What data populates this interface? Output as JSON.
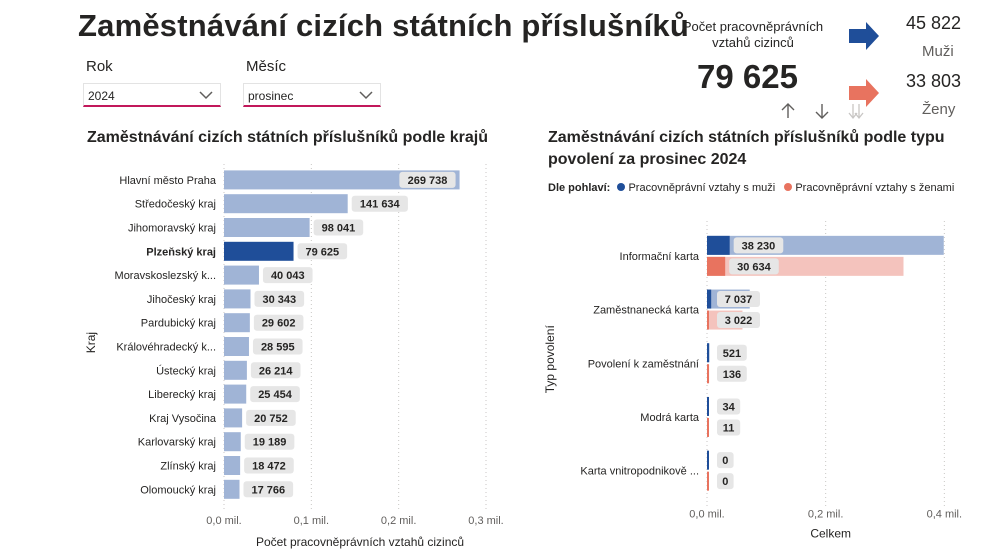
{
  "page": {
    "title": "Zaměstnávání cizích státních příslušníků"
  },
  "filters": {
    "year": {
      "label": "Rok",
      "value": "2024"
    },
    "month": {
      "label": "Měsíc",
      "value": "prosinec"
    }
  },
  "kpi": {
    "label": "Počet pracovněprávních vztahů cizinců",
    "value": "79 625",
    "men": {
      "value": "45 822",
      "label": "Muži"
    },
    "women": {
      "value": "33 803",
      "label": "Ženy"
    },
    "colors": {
      "men": "#1f4e99",
      "women": "#e8735f"
    }
  },
  "chart_data": [
    {
      "type": "bar",
      "orientation": "horizontal",
      "title": "Zaměstnávání cizích státních příslušníků podle krajů",
      "xlabel": "Počet pracovněprávních vztahů cizinců",
      "ylabel": "Kraj",
      "xlim": [
        0,
        300000
      ],
      "x_ticks": [
        "0,0 mil.",
        "0,1 mil.",
        "0,2 mil.",
        "0,3 mil."
      ],
      "x_tick_values": [
        0,
        100000,
        200000,
        300000
      ],
      "grid": true,
      "highlighted": "Plzeňský kraj",
      "colors": {
        "bar": "#a0b4d6",
        "highlight": "#1f4e99"
      },
      "categories": [
        "Hlavní město Praha",
        "Středočeský kraj",
        "Jihomoravský kraj",
        "Plzeňský kraj",
        "Moravskoslezský k...",
        "Jihočeský kraj",
        "Pardubický kraj",
        "Královéhradecký k...",
        "Ústecký kraj",
        "Liberecký kraj",
        "Kraj Vysočina",
        "Karlovarský kraj",
        "Zlínský kraj",
        "Olomoucký kraj"
      ],
      "values": [
        269738,
        141634,
        98041,
        79625,
        40043,
        30343,
        29602,
        28595,
        26214,
        25454,
        20752,
        19189,
        18472,
        17766
      ],
      "labels": [
        "269 738",
        "141 634",
        "98 041",
        "79 625",
        "40 043",
        "30 343",
        "29 602",
        "28 595",
        "26 214",
        "25 454",
        "20 752",
        "19 189",
        "18 472",
        "17 766"
      ]
    },
    {
      "type": "bar",
      "orientation": "horizontal",
      "title": "Zaměstnávání cizích státních příslušníků podle typu povolení za prosinec 2024",
      "legend_title": "Dle pohlaví:",
      "legend_position": "top-left",
      "xlabel": "Celkem",
      "ylabel": "Typ povolení",
      "xlim": [
        0,
        450000
      ],
      "x_ticks": [
        "0,0 mil.",
        "0,2 mil.",
        "0,4 mil."
      ],
      "x_tick_values": [
        0,
        200000,
        400000
      ],
      "grid": true,
      "categories": [
        "Informační karta",
        "Zaměstnanecká karta",
        "Povolení k zaměstnání",
        "Modrá karta",
        "Karta vnitropodnikově ..."
      ],
      "totals": [
        399000,
        72000,
        4300,
        1500,
        0
      ],
      "series": [
        {
          "name": "Pracovněprávní vztahy s muži",
          "color": "#1f4e99",
          "total_color": "#a0b4d6",
          "values": [
            38230,
            7037,
            521,
            34,
            0
          ],
          "labels": [
            "38 230",
            "7 037",
            "521",
            "34",
            "0"
          ]
        },
        {
          "name": "Pracovněprávní vztahy s ženami",
          "color": "#e8735f",
          "total_color": "#f4c3bd",
          "values": [
            30634,
            3022,
            136,
            11,
            0
          ],
          "labels": [
            "30 634",
            "3 022",
            "136",
            "11",
            "0"
          ]
        }
      ]
    }
  ]
}
